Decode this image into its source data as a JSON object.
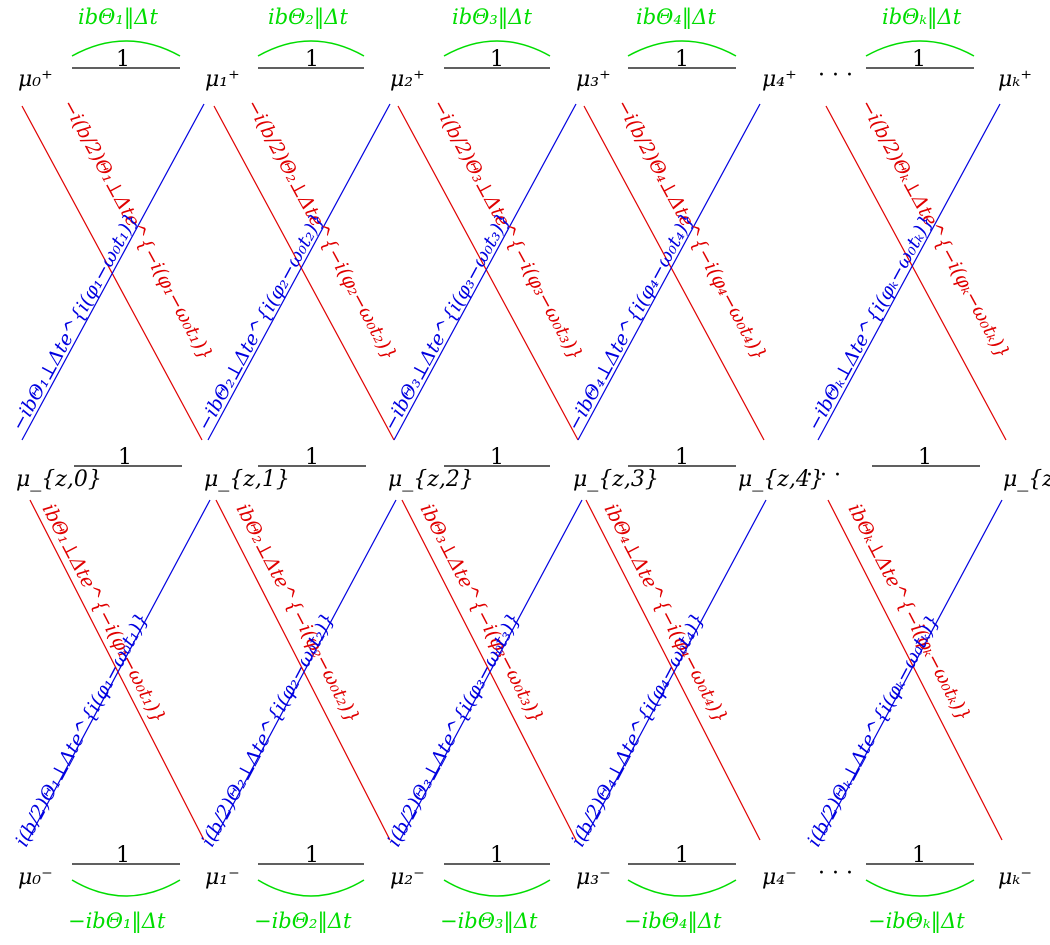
{
  "colors": {
    "top_arc": "#00dd00",
    "bottom_arc": "#00dd00",
    "red": "#e00000",
    "blue": "#0000e0",
    "black": "#000000"
  },
  "top_nodes": [
    "μ₀⁺",
    "μ₁⁺",
    "μ₂⁺",
    "μ₃⁺",
    "μ₄⁺",
    "μₖ⁺"
  ],
  "mid_nodes": [
    "μ_{z,0}",
    "μ_{z,1}",
    "μ_{z,2}",
    "μ_{z,3}",
    "μ_{z,4}",
    "μ_{z,k}"
  ],
  "bot_nodes": [
    "μ₀⁻",
    "μ₁⁻",
    "μ₂⁻",
    "μ₃⁻",
    "μ₄⁻",
    "μₖ⁻"
  ],
  "ellipsis": "· · ·",
  "edge_weight": "1",
  "top_arc_labels": [
    "ibΘ₁‖Δt",
    "ibΘ₂‖Δt",
    "ibΘ₃‖Δt",
    "ibΘ₄‖Δt",
    "ibΘₖ‖Δt"
  ],
  "bottom_arc_labels": [
    "−ibΘ₁‖Δt",
    "−ibΘ₂‖Δt",
    "−ibΘ₃‖Δt",
    "−ibΘ₄‖Δt",
    "−ibΘₖ‖Δt"
  ],
  "upper_red_labels": [
    "−i(b/2)Θ₁⊥Δte^{−i(φ₁−ω₀t₁)}",
    "−i(b/2)Θ₂⊥Δte^{−i(φ₂−ω₀t₂)}",
    "−i(b/2)Θ₃⊥Δte^{−i(φ₃−ω₀t₃)}",
    "−i(b/2)Θ₄⊥Δte^{−i(φ₄−ω₀t₄)}",
    "−i(b/2)Θₖ⊥Δte^{−i(φₖ−ω₀tₖ)}"
  ],
  "upper_blue_labels": [
    "−ibΘ₁⊥Δte^{i(φ₁−ω₀t₁)}",
    "−ibΘ₂⊥Δte^{i(φ₂−ω₀t₂)}",
    "−ibΘ₃⊥Δte^{i(φ₃−ω₀t₃)}",
    "−ibΘ₄⊥Δte^{i(φ₄−ω₀t₄)}",
    "−ibΘₖ⊥Δte^{i(φₖ−ω₀tₖ)}"
  ],
  "lower_red_labels": [
    "ibΘ₁⊥Δte^{−i(φ₁−ω₀t₁)}",
    "ibΘ₂⊥Δte^{−i(φ₂−ω₀t₂)}",
    "ibΘ₃⊥Δte^{−i(φ₃−ω₀t₃)}",
    "ibΘ₄⊥Δte^{−i(φ₄−ω₀t₄)}",
    "ibΘₖ⊥Δte^{−i(φₖ−ω₀tₖ)}"
  ],
  "lower_blue_labels": [
    "i(b/2)Θ₁⊥Δte^{i(φ₁−ω₀t₁)}",
    "i(b/2)Θ₂⊥Δte^{i(φ₂−ω₀t₂)}",
    "i(b/2)Θ₃⊥Δte^{i(φ₃−ω₀t₃)}",
    "i(b/2)Θ₄⊥Δte^{i(φ₄−ω₀t₄)}",
    "i(b/2)Θₖ⊥Δte^{i(φₖ−ω₀tₖ)}"
  ]
}
